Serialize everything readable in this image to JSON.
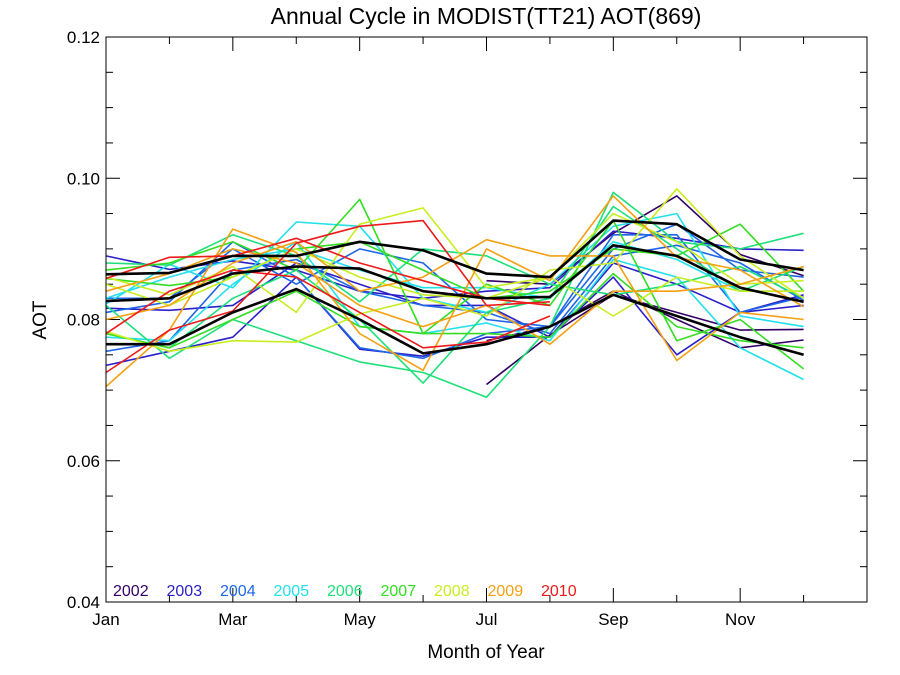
{
  "chart_data": {
    "type": "line",
    "title": "Annual Cycle in MODIST(TT21) AOT(869)",
    "xlabel": "Month of Year",
    "ylabel": "AOT",
    "x": [
      1,
      2,
      3,
      4,
      5,
      6,
      7,
      8,
      9,
      10,
      11,
      12
    ],
    "xlim": [
      1,
      13
    ],
    "xticks": [
      {
        "value": 1,
        "label": "Jan"
      },
      {
        "value": 3,
        "label": "Mar"
      },
      {
        "value": 5,
        "label": "May"
      },
      {
        "value": 7,
        "label": "Jul"
      },
      {
        "value": 9,
        "label": "Sep"
      },
      {
        "value": 11,
        "label": "Nov"
      }
    ],
    "ylim": [
      0.04,
      0.12
    ],
    "yticks": [
      {
        "value": 0.04,
        "label": "0.04"
      },
      {
        "value": 0.06,
        "label": "0.06"
      },
      {
        "value": 0.08,
        "label": "0.08"
      },
      {
        "value": 0.1,
        "label": "0.10"
      },
      {
        "value": 0.12,
        "label": "0.12"
      }
    ],
    "grid": false,
    "legend_position": "bottom-left",
    "series": [
      {
        "name": "2002",
        "color": "#330066",
        "lines": [
          [
            null,
            null,
            null,
            null,
            null,
            null,
            0.0708,
            0.0778,
            0.0835,
            0.081,
            0.0785,
            0.0786
          ],
          [
            null,
            null,
            null,
            null,
            null,
            null,
            0.0855,
            0.085,
            0.0922,
            0.0975,
            0.0892,
            0.0862
          ],
          [
            null,
            null,
            null,
            null,
            null,
            null,
            0.077,
            0.079,
            0.084,
            0.08,
            0.076,
            0.0771
          ]
        ]
      },
      {
        "name": "2003",
        "color": "#2a1fc9",
        "lines": [
          [
            0.089,
            0.0871,
            0.0883,
            0.087,
            0.084,
            0.083,
            0.084,
            0.0845,
            0.0925,
            0.0915,
            0.09,
            0.0898
          ],
          [
            0.0735,
            0.0755,
            0.0775,
            0.086,
            0.0758,
            0.0748,
            0.0775,
            0.0775,
            0.086,
            0.075,
            0.081,
            0.082
          ],
          [
            0.0816,
            0.0813,
            0.082,
            0.088,
            0.085,
            0.082,
            0.082,
            0.0775,
            0.088,
            0.085,
            0.081,
            0.0835
          ]
        ]
      },
      {
        "name": "2004",
        "color": "#1e66e6",
        "lines": [
          [
            0.081,
            0.0825,
            0.091,
            0.086,
            0.076,
            0.0745,
            0.078,
            0.079,
            0.09,
            0.0935,
            0.087,
            0.086
          ],
          [
            0.083,
            0.083,
            0.09,
            0.085,
            0.09,
            0.088,
            0.08,
            0.079,
            0.092,
            0.092,
            0.081,
            0.0832
          ],
          [
            0.0755,
            0.077,
            0.087,
            0.0885,
            0.084,
            0.082,
            0.081,
            0.078,
            0.089,
            0.0905,
            0.088,
            0.0827
          ]
        ]
      },
      {
        "name": "2005",
        "color": "#22e0ee",
        "lines": [
          [
            0.0822,
            0.0878,
            0.0845,
            0.0938,
            0.0932,
            0.083,
            0.081,
            0.085,
            0.0932,
            0.095,
            0.0805,
            0.079
          ],
          [
            0.083,
            0.086,
            0.0885,
            0.09,
            0.087,
            0.0845,
            0.0845,
            0.083,
            0.091,
            0.0885,
            0.084,
            0.084
          ],
          [
            0.0775,
            0.077,
            0.085,
            0.091,
            0.079,
            0.078,
            0.0795,
            0.077,
            0.0885,
            0.086,
            0.076,
            0.0715
          ]
        ]
      },
      {
        "name": "2006",
        "color": "#1ee07a",
        "lines": [
          [
            0.082,
            0.0745,
            0.08,
            0.077,
            0.074,
            0.0725,
            0.069,
            0.079,
            0.098,
            0.091,
            0.09,
            0.0922
          ],
          [
            0.088,
            0.0877,
            0.092,
            0.089,
            0.0825,
            0.09,
            0.089,
            0.085,
            0.0835,
            0.085,
            0.0875,
            0.083
          ],
          [
            0.078,
            0.076,
            0.083,
            0.087,
            0.08,
            0.071,
            0.081,
            0.083,
            0.096,
            0.09,
            0.084,
            0.0875
          ]
        ]
      },
      {
        "name": "2007",
        "color": "#33dd22",
        "lines": [
          [
            0.087,
            0.088,
            0.091,
            0.087,
            0.097,
            0.078,
            0.085,
            0.082,
            0.094,
            0.077,
            0.08,
            0.073
          ],
          [
            0.0858,
            0.0848,
            0.086,
            0.09,
            0.091,
            0.087,
            0.083,
            0.084,
            0.09,
            0.089,
            0.0935,
            0.084
          ],
          [
            0.078,
            0.076,
            0.08,
            0.084,
            0.079,
            0.078,
            0.078,
            0.0775,
            0.0865,
            0.079,
            0.077,
            0.076
          ]
        ]
      },
      {
        "name": "2008",
        "color": "#c8ee22",
        "lines": [
          [
            0.0783,
            0.0755,
            0.077,
            0.0768,
            0.0808,
            0.083,
            0.0805,
            0.087,
            0.088,
            0.0985,
            0.089,
            0.083
          ],
          [
            0.086,
            0.0835,
            0.0875,
            0.081,
            0.0935,
            0.0958,
            0.0845,
            0.086,
            0.0805,
            0.086,
            0.084,
            0.084
          ],
          [
            0.085,
            0.082,
            0.086,
            0.09,
            0.086,
            0.0835,
            0.083,
            0.086,
            0.095,
            0.091,
            0.085,
            0.0855
          ]
        ]
      },
      {
        "name": "2009",
        "color": "#f5a012",
        "lines": [
          [
            0.0705,
            0.0785,
            0.0928,
            0.0895,
            0.078,
            0.0728,
            0.09,
            0.0855,
            0.0975,
            0.0888,
            0.087,
            0.0818
          ],
          [
            0.08,
            0.082,
            0.088,
            0.091,
            0.084,
            0.086,
            0.0913,
            0.089,
            0.089,
            0.0742,
            0.081,
            0.08
          ],
          [
            0.084,
            0.0865,
            0.09,
            0.088,
            0.082,
            0.079,
            0.082,
            0.0765,
            0.084,
            0.084,
            0.085,
            0.0875
          ]
        ]
      },
      {
        "name": "2010",
        "color": "#ee1a1a",
        "lines": [
          [
            0.0725,
            0.0785,
            0.0812,
            0.0908,
            0.0932,
            0.094,
            0.082,
            0.0825,
            null,
            null,
            null,
            null
          ],
          [
            0.0858,
            0.0888,
            0.089,
            0.0915,
            0.088,
            0.0855,
            0.083,
            0.082,
            null,
            null,
            null,
            null
          ],
          [
            0.078,
            0.084,
            0.087,
            0.086,
            0.081,
            0.076,
            0.0768,
            0.0805,
            null,
            null,
            null,
            null
          ]
        ]
      },
      {
        "name": "",
        "color": "#000000",
        "lines": [
          [
            0.0864,
            0.0866,
            0.089,
            0.089,
            0.091,
            0.0898,
            0.0865,
            0.086,
            0.094,
            0.0935,
            0.0885,
            0.087
          ],
          [
            0.0826,
            0.083,
            0.0865,
            0.0875,
            0.0872,
            0.084,
            0.083,
            0.0832,
            0.0905,
            0.089,
            0.0845,
            0.0825
          ],
          [
            0.0765,
            0.0765,
            0.081,
            0.0843,
            0.08,
            0.0752,
            0.0765,
            0.079,
            0.0835,
            0.0805,
            0.0775,
            0.075
          ]
        ]
      }
    ]
  }
}
